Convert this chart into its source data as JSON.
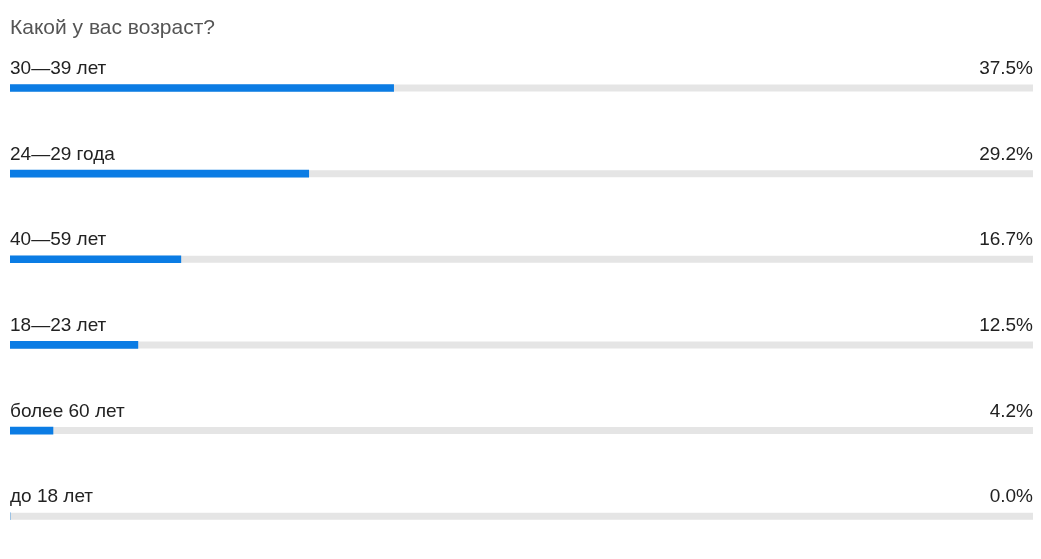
{
  "chart_data": {
    "type": "bar",
    "orientation": "horizontal",
    "title": "Какой у вас возраст?",
    "categories": [
      "30—39 лет",
      "24—29 года",
      "40—59 лет",
      "18—23 лет",
      "более 60 лет",
      "до 18 лет"
    ],
    "values": [
      37.5,
      29.2,
      16.7,
      12.5,
      4.2,
      0.0
    ],
    "value_labels": [
      "37.5%",
      "29.2%",
      "16.7%",
      "12.5%",
      "4.2%",
      "0.0%"
    ],
    "color": "#0b7ce4",
    "xlim": [
      0,
      100
    ],
    "legend": false
  }
}
